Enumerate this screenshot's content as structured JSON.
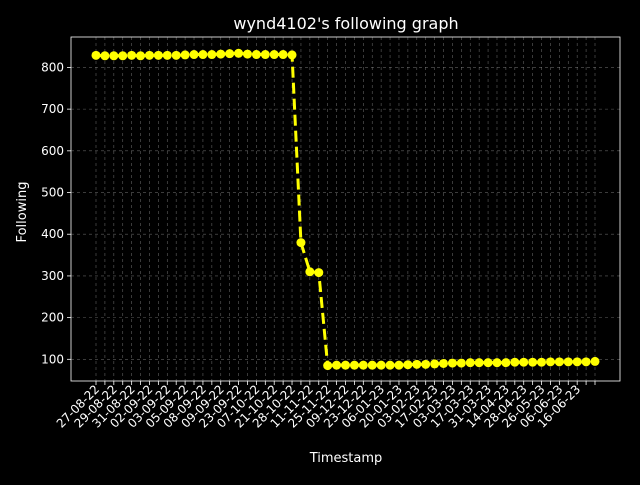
{
  "chart_data": {
    "type": "line",
    "title": "wynd4102's following graph",
    "xlabel": "Timestamp",
    "ylabel": "Following",
    "ylim": [
      48,
      873
    ],
    "y_ticks": [
      100,
      200,
      300,
      400,
      500,
      600,
      700,
      800
    ],
    "grid": true,
    "style": {
      "background": "#000000",
      "line_color": "#ffff00",
      "line_style": "dashed",
      "marker": "circle",
      "grid_color": "#b0b0b0",
      "text_color": "#ffffff"
    },
    "x_tick_labels": [
      "27-08-22",
      "29-08-22",
      "31-08-22",
      "02-09-22",
      "03-09-22",
      "05-09-22",
      "08-09-22",
      "09-09-22",
      "23-09-22",
      "07-10-22",
      "21-10-22",
      "28-10-22",
      "11-11-22",
      "25-11-22",
      "09-12-22",
      "23-12-22",
      "06-01-23",
      "20-01-23",
      "03-02-23",
      "17-02-23",
      "03-03-23",
      "17-03-23",
      "31-03-23",
      "14-04-23",
      "28-04-23",
      "26-05-23",
      "06-06-23",
      "16-06-23"
    ],
    "series": [
      {
        "values": [
          829,
          828,
          828,
          828,
          829,
          828,
          829,
          829,
          829,
          829,
          830,
          831,
          831,
          831,
          832,
          833,
          834,
          832,
          831,
          831,
          831,
          831,
          830,
          380,
          310,
          308,
          85,
          86,
          86,
          86,
          86,
          86,
          86,
          86,
          86,
          87,
          88,
          88,
          89,
          90,
          91,
          91,
          92,
          92,
          92,
          92,
          92,
          93,
          93,
          93,
          93,
          94,
          94,
          94,
          94,
          94,
          95
        ]
      }
    ]
  }
}
